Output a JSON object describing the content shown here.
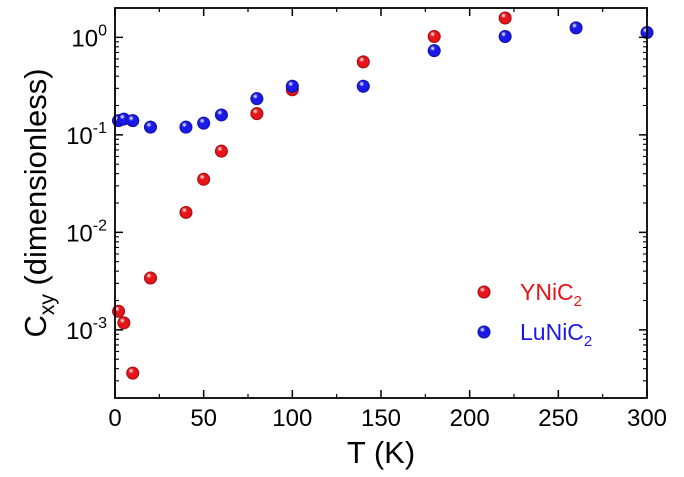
{
  "chart_data": {
    "type": "scatter",
    "xlabel": "T (K)",
    "ylabel": {
      "main": "C",
      "sub": "xy",
      "rest": " (dimensionless)"
    },
    "xlim": [
      0,
      300
    ],
    "ylim": [
      0.0002,
      2.0
    ],
    "yscale": "log",
    "xticks": [
      {
        "value": 0,
        "label": "0"
      },
      {
        "value": 50,
        "label": "50"
      },
      {
        "value": 100,
        "label": "100"
      },
      {
        "value": 150,
        "label": "150"
      },
      {
        "value": 200,
        "label": "200"
      },
      {
        "value": 250,
        "label": "250"
      },
      {
        "value": 300,
        "label": "300"
      }
    ],
    "yticks": [
      {
        "value": 0.001,
        "base": "10",
        "exp": "-3"
      },
      {
        "value": 0.01,
        "base": "10",
        "exp": "-2"
      },
      {
        "value": 0.1,
        "base": "10",
        "exp": "-1"
      },
      {
        "value": 1,
        "base": "10",
        "exp": "0"
      }
    ],
    "grid": false,
    "legend_position": "bottom-right",
    "series": [
      {
        "name": {
          "main": "YNiC",
          "sub": "2"
        },
        "color": "#e8141a",
        "points": [
          {
            "x": 2,
            "y": 0.00155
          },
          {
            "x": 5,
            "y": 0.00118
          },
          {
            "x": 10,
            "y": 0.00036
          },
          {
            "x": 20,
            "y": 0.0034
          },
          {
            "x": 40,
            "y": 0.016
          },
          {
            "x": 50,
            "y": 0.035
          },
          {
            "x": 60,
            "y": 0.068
          },
          {
            "x": 80,
            "y": 0.165
          },
          {
            "x": 100,
            "y": 0.29
          },
          {
            "x": 140,
            "y": 0.56
          },
          {
            "x": 180,
            "y": 1.02
          },
          {
            "x": 220,
            "y": 1.58
          }
        ]
      },
      {
        "name": {
          "main": "LuNiC",
          "sub": "2"
        },
        "color": "#1a1ae8",
        "points": [
          {
            "x": 2,
            "y": 0.14
          },
          {
            "x": 5,
            "y": 0.145
          },
          {
            "x": 10,
            "y": 0.14
          },
          {
            "x": 20,
            "y": 0.12
          },
          {
            "x": 40,
            "y": 0.12
          },
          {
            "x": 50,
            "y": 0.132
          },
          {
            "x": 60,
            "y": 0.16
          },
          {
            "x": 80,
            "y": 0.235
          },
          {
            "x": 100,
            "y": 0.315
          },
          {
            "x": 140,
            "y": 0.315
          },
          {
            "x": 180,
            "y": 0.73
          },
          {
            "x": 220,
            "y": 1.02
          },
          {
            "x": 260,
            "y": 1.25
          },
          {
            "x": 300,
            "y": 1.12
          }
        ]
      }
    ]
  }
}
